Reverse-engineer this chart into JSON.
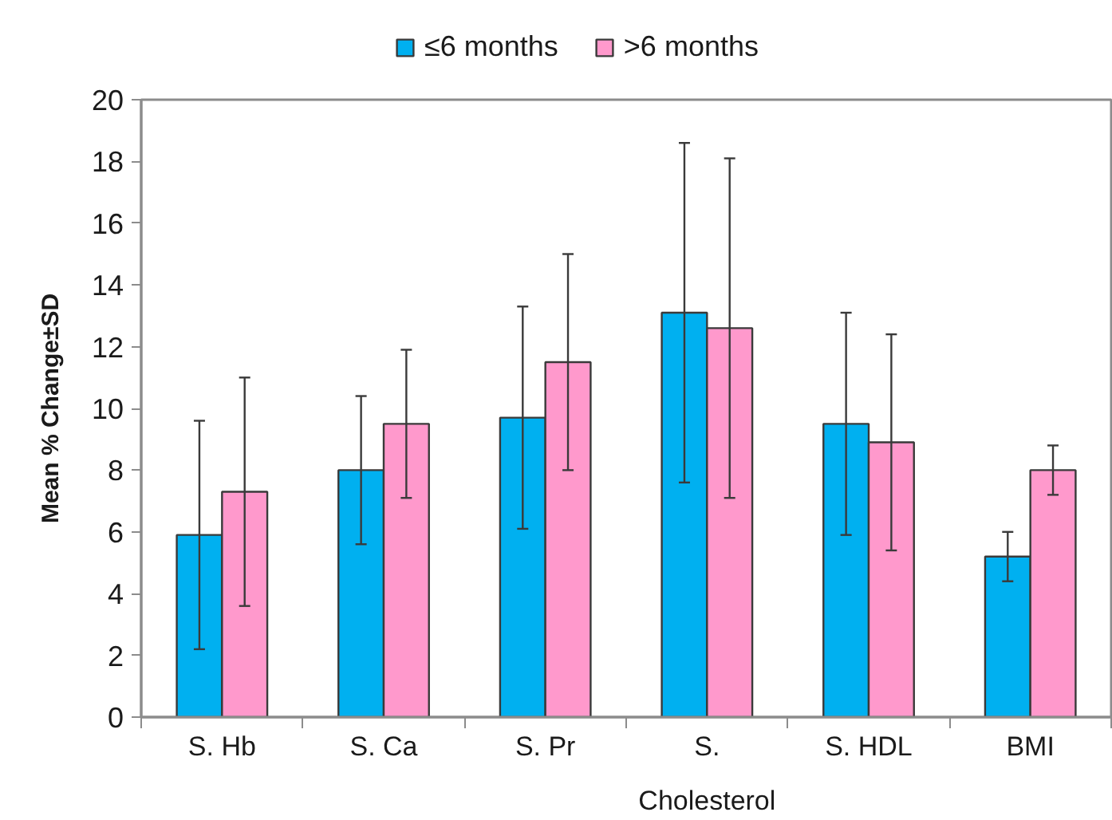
{
  "chart_data": {
    "type": "bar",
    "categories": [
      "S. Hb",
      "S. Ca",
      "S. Pr",
      "S. Cholesterol",
      "S. HDL",
      "BMI"
    ],
    "ylabel": "Mean % Change±SD",
    "ylim": [
      0,
      20
    ],
    "yticks": [
      0,
      2,
      4,
      6,
      8,
      10,
      12,
      14,
      16,
      18,
      20
    ],
    "grid": false,
    "legend": "top",
    "series": [
      {
        "name": "≤6 months",
        "color": "#00b0f0",
        "values": [
          5.9,
          8.0,
          9.7,
          13.1,
          9.5,
          5.2
        ],
        "errors": [
          3.7,
          2.4,
          3.6,
          5.5,
          3.6,
          0.8
        ]
      },
      {
        "name": ">6 months",
        "color": "#ff99cc",
        "values": [
          7.3,
          9.5,
          11.5,
          12.6,
          8.9,
          8.0
        ],
        "errors": [
          3.7,
          2.4,
          3.5,
          5.5,
          3.5,
          0.8
        ]
      }
    ]
  }
}
